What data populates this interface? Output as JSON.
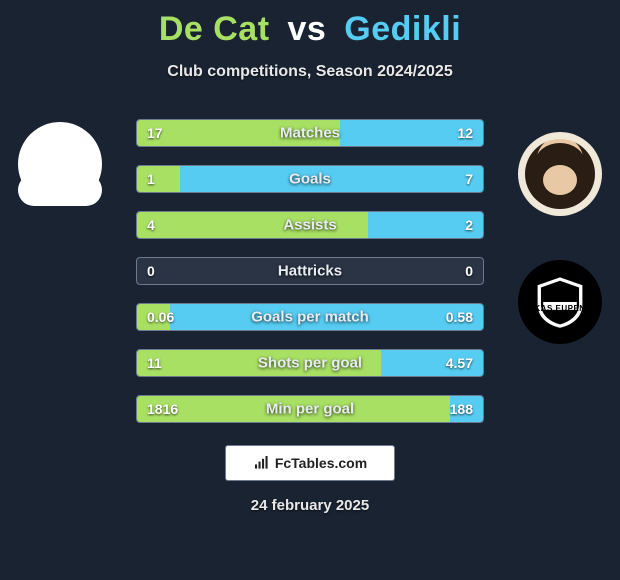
{
  "title": {
    "player1": "De Cat",
    "player2": "Gedikli",
    "vs": "vs"
  },
  "subtitle": "Club competitions, Season 2024/2025",
  "players": {
    "left_club_name": "",
    "right_club_name": "KAS EUPEN"
  },
  "colors": {
    "bg": "#1a2332",
    "left": "#a8e063",
    "right": "#56ccf2",
    "border": "#6b7a8f"
  },
  "rows": [
    {
      "label": "Matches",
      "left_val": "17",
      "right_val": "12",
      "left_pct": 58.6,
      "right_pct": 41.4
    },
    {
      "label": "Goals",
      "left_val": "1",
      "right_val": "7",
      "left_pct": 12.5,
      "right_pct": 87.5
    },
    {
      "label": "Assists",
      "left_val": "4",
      "right_val": "2",
      "left_pct": 66.7,
      "right_pct": 33.3
    },
    {
      "label": "Hattricks",
      "left_val": "0",
      "right_val": "0",
      "left_pct": 0,
      "right_pct": 0
    },
    {
      "label": "Goals per match",
      "left_val": "0.06",
      "right_val": "0.58",
      "left_pct": 9.4,
      "right_pct": 90.6
    },
    {
      "label": "Shots per goal",
      "left_val": "11",
      "right_val": "4.57",
      "left_pct": 70.6,
      "right_pct": 29.4
    },
    {
      "label": "Min per goal",
      "left_val": "1816",
      "right_val": "188",
      "left_pct": 90.6,
      "right_pct": 9.4
    }
  ],
  "brand": {
    "text": "FcTables.com"
  },
  "date": "24 february 2025"
}
